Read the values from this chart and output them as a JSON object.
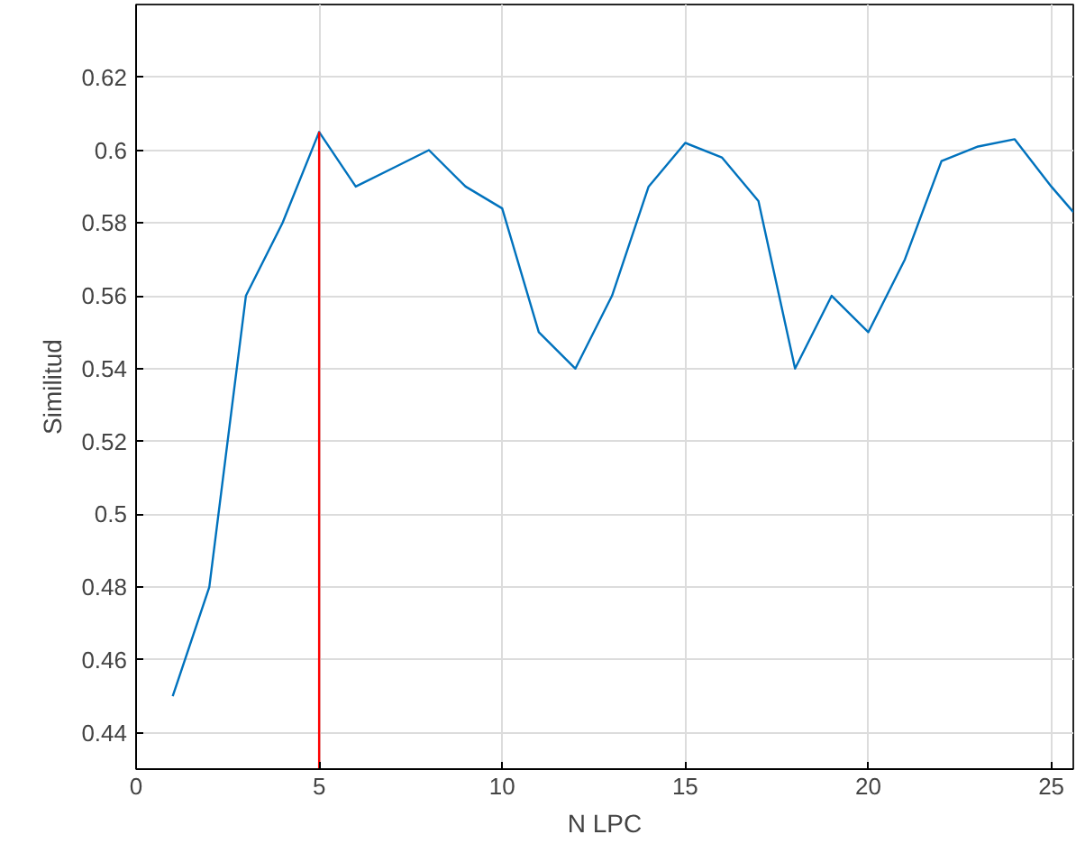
{
  "chart_data": {
    "type": "line",
    "xlabel": "N LPC",
    "ylabel": "Similitud",
    "x": [
      1,
      2,
      3,
      4,
      5,
      6,
      7,
      8,
      9,
      10,
      11,
      12,
      13,
      14,
      15,
      16,
      17,
      18,
      19,
      20,
      21,
      22,
      23,
      24,
      25,
      25.6
    ],
    "series": [
      {
        "color": "#0072bd",
        "values": [
          0.45,
          0.48,
          0.56,
          0.58,
          0.605,
          0.59,
          0.595,
          0.6,
          0.59,
          0.584,
          0.55,
          0.54,
          0.56,
          0.59,
          0.602,
          0.598,
          0.586,
          0.54,
          0.56,
          0.55,
          0.57,
          0.597,
          0.601,
          0.603,
          0.59,
          0.583
        ]
      },
      {
        "color": "#ff0000",
        "x": [
          5,
          5
        ],
        "values": [
          0.43,
          0.605
        ]
      }
    ],
    "xlim": [
      0,
      25.6
    ],
    "ylim": [
      0.43,
      0.64
    ],
    "xticks": [
      0,
      5,
      10,
      15,
      20,
      25
    ],
    "yticks": [
      0.44,
      0.46,
      0.48,
      0.5,
      0.52,
      0.54,
      0.56,
      0.58,
      0.6,
      0.62
    ],
    "grid": true,
    "marker": "none",
    "line_style": "solid"
  }
}
